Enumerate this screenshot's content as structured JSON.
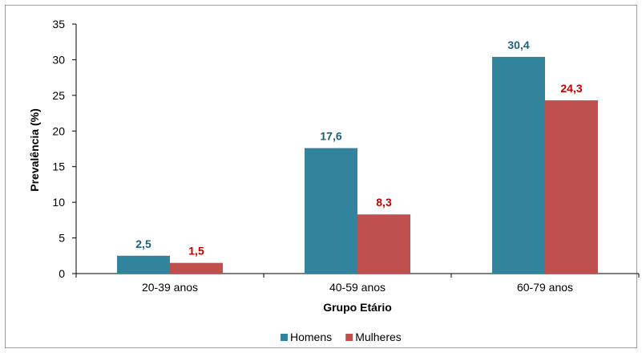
{
  "chart_data": {
    "type": "bar",
    "title": "",
    "xlabel": "Grupo Etário",
    "ylabel": "Prevalência (%)",
    "categories": [
      "20-39 anos",
      "40-59 anos",
      "60-79 anos"
    ],
    "series": [
      {
        "name": "Homens",
        "values": [
          2.5,
          17.6,
          30.4
        ],
        "labels": [
          "2,5",
          "17,6",
          "30,4"
        ],
        "color": "#31849b"
      },
      {
        "name": "Mulheres",
        "values": [
          1.5,
          8.3,
          24.3
        ],
        "labels": [
          "1,5",
          "8,3",
          "24,3"
        ],
        "color": "#c0504d"
      }
    ],
    "ylim": [
      0,
      35
    ],
    "yticks": [
      0,
      5,
      10,
      15,
      20,
      25,
      30,
      35
    ],
    "grid": false,
    "legend_position": "bottom",
    "label_colors": [
      "#1f5f7a",
      "#c00000"
    ]
  }
}
